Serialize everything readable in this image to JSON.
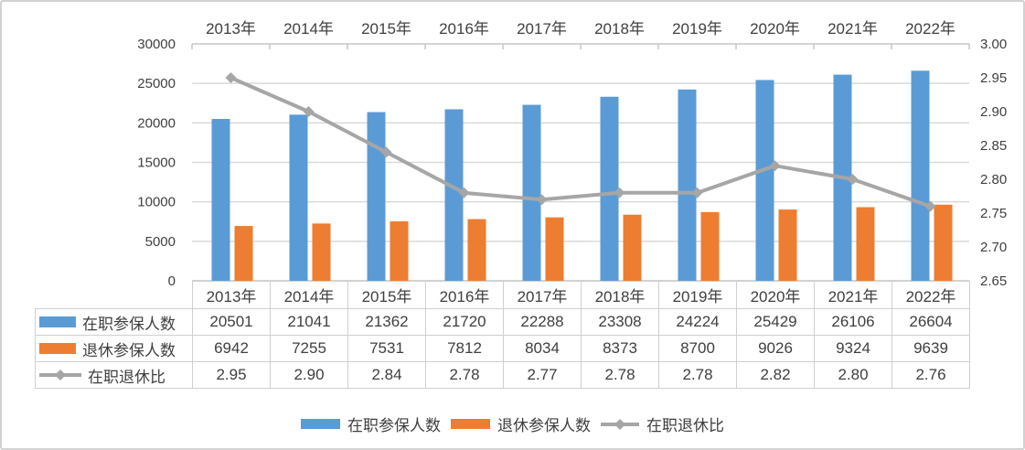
{
  "chart_data": {
    "type": "combo-bar-line",
    "title": "",
    "categories": [
      "2013年",
      "2014年",
      "2015年",
      "2016年",
      "2017年",
      "2018年",
      "2019年",
      "2020年",
      "2021年",
      "2022年"
    ],
    "series": [
      {
        "name": "在职参保人数",
        "type": "bar",
        "axis": "left",
        "color": "#5B9BD5",
        "values": [
          20501,
          21041,
          21362,
          21720,
          22288,
          23308,
          24224,
          25429,
          26106,
          26604
        ]
      },
      {
        "name": "退休参保人数",
        "type": "bar",
        "axis": "left",
        "color": "#ED7D31",
        "values": [
          6942,
          7255,
          7531,
          7812,
          8034,
          8373,
          8700,
          9026,
          9324,
          9639
        ]
      },
      {
        "name": "在职退休比",
        "type": "line",
        "axis": "right",
        "color": "#A6A6A6",
        "marker": "diamond",
        "values": [
          2.95,
          2.9,
          2.84,
          2.78,
          2.77,
          2.78,
          2.78,
          2.82,
          2.8,
          2.76
        ],
        "display": [
          "2.95",
          "2.90",
          "2.84",
          "2.78",
          "2.77",
          "2.78",
          "2.78",
          "2.82",
          "2.80",
          "2.76"
        ]
      }
    ],
    "left_axis": {
      "min": 0,
      "max": 30000,
      "step": 5000,
      "labels": [
        "0",
        "5000",
        "10000",
        "15000",
        "20000",
        "25000",
        "30000"
      ]
    },
    "right_axis": {
      "min": 2.65,
      "max": 3.0,
      "step": 0.05,
      "labels": [
        "2.65",
        "2.70",
        "2.75",
        "2.80",
        "2.85",
        "2.90",
        "2.95",
        "3.00"
      ]
    },
    "grid": true,
    "category_labels_position": "top",
    "legend_position": "bottom",
    "colors": {
      "gridline": "#D9D9D9",
      "axis_line": "#C6C6C6",
      "text": "#404040"
    }
  },
  "legend": {
    "items": [
      {
        "label": "在职参保人数",
        "key": "bar",
        "color": "#5B9BD5"
      },
      {
        "label": "退休参保人数",
        "key": "bar",
        "color": "#ED7D31"
      },
      {
        "label": "在职退休比",
        "key": "line",
        "color": "#A6A6A6"
      }
    ]
  }
}
